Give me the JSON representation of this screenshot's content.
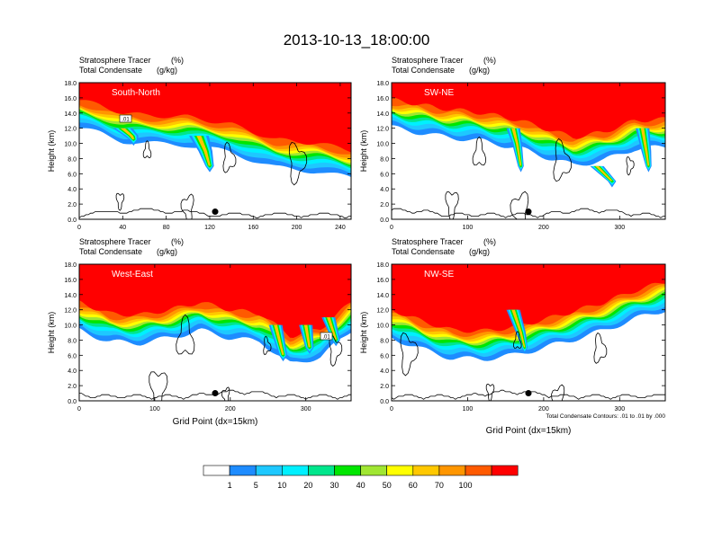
{
  "title": "2013-10-13_18:00:00",
  "colors": {
    "bins": [
      "#ffffff",
      "#1e8cff",
      "#1ec8ff",
      "#00f0ff",
      "#00e68c",
      "#00e600",
      "#a0e632",
      "#ffff00",
      "#ffc800",
      "#ff9600",
      "#ff5a00",
      "#ff0000"
    ],
    "contour": "#000000",
    "terrain": "#000000"
  },
  "colorbar": {
    "labels": [
      "1",
      "5",
      "10",
      "20",
      "30",
      "40",
      "50",
      "60",
      "70",
      "100"
    ]
  },
  "chart_data": [
    {
      "type": "heatmap",
      "panel_label": "South-North",
      "subtitle_left_1": "Stratosphere Tracer",
      "subtitle_unit_1": "(%)",
      "subtitle_left_2": "Total Condensate",
      "subtitle_unit_2": "(g/kg)",
      "ylabel": "Height (km)",
      "xlabel": "",
      "xlim": [
        0,
        250
      ],
      "ylim": [
        0,
        18
      ],
      "xticks": [
        "0",
        "40",
        "80",
        "120",
        "160",
        "200",
        "240"
      ],
      "xtick_values": [
        0,
        40,
        80,
        120,
        160,
        200,
        240
      ],
      "yticks": [
        "0.0",
        "2.0",
        "4.0",
        "6.0",
        "8.0",
        "10.0",
        "12.0",
        "14.0",
        "16.0",
        "18.0"
      ],
      "tropopause_km": [
        [
          0,
          15.2
        ],
        [
          20,
          14.5
        ],
        [
          40,
          13.5
        ],
        [
          60,
          13.2
        ],
        [
          100,
          13
        ],
        [
          140,
          12
        ],
        [
          180,
          10
        ],
        [
          220,
          9.5
        ],
        [
          250,
          8.6
        ]
      ],
      "intrusions": [
        [
          [
            40,
            12
          ],
          [
            48,
            11
          ],
          [
            50,
            10.5
          ]
        ],
        [
          [
            110,
            11
          ],
          [
            116,
            9
          ],
          [
            120,
            7
          ]
        ]
      ],
      "marker": [
        125,
        1.0
      ],
      "contour_label": ".01"
    },
    {
      "type": "heatmap",
      "panel_label": "SW-NE",
      "subtitle_left_1": "Stratosphere Tracer",
      "subtitle_unit_1": "(%)",
      "subtitle_left_2": "Total Condensate",
      "subtitle_unit_2": "(g/kg)",
      "ylabel": "Height (km)",
      "xlabel": "",
      "xlim": [
        0,
        360
      ],
      "ylim": [
        0,
        18
      ],
      "xticks": [
        "0",
        "100",
        "200",
        "300"
      ],
      "xtick_values": [
        0,
        100,
        200,
        300
      ],
      "yticks": [
        "0.0",
        "2.0",
        "4.0",
        "6.0",
        "8.0",
        "10.0",
        "12.0",
        "14.0",
        "16.0",
        "18.0"
      ],
      "tropopause_km": [
        [
          0,
          15.3
        ],
        [
          60,
          14.2
        ],
        [
          120,
          13.5
        ],
        [
          170,
          12.5
        ],
        [
          200,
          11.5
        ],
        [
          240,
          10.3
        ],
        [
          280,
          11
        ],
        [
          320,
          12.5
        ],
        [
          360,
          12.7
        ]
      ],
      "intrusions": [
        [
          [
            160,
            12
          ],
          [
            165,
            10
          ],
          [
            170,
            7
          ]
        ],
        [
          [
            270,
            7
          ],
          [
            290,
            5
          ]
        ],
        [
          [
            330,
            12
          ],
          [
            335,
            9
          ],
          [
            338,
            7
          ]
        ]
      ],
      "marker": [
        180,
        1.0
      ],
      "contour_label": ""
    },
    {
      "type": "heatmap",
      "panel_label": "West-East",
      "subtitle_left_1": "Stratosphere Tracer",
      "subtitle_unit_1": "(%)",
      "subtitle_left_2": "Total Condensate",
      "subtitle_unit_2": "(g/kg)",
      "ylabel": "Height (km)",
      "xlabel": "Grid Point (dx=15km)",
      "xlim": [
        0,
        360
      ],
      "ylim": [
        0,
        18
      ],
      "xticks": [
        "0",
        "100",
        "200",
        "300"
      ],
      "xtick_values": [
        0,
        100,
        200,
        300
      ],
      "yticks": [
        "0.0",
        "2.0",
        "4.0",
        "6.0",
        "8.0",
        "10.0",
        "12.0",
        "14.0",
        "16.0",
        "18.0"
      ],
      "tropopause_km": [
        [
          0,
          12.5
        ],
        [
          40,
          11
        ],
        [
          80,
          10.8
        ],
        [
          120,
          11.5
        ],
        [
          160,
          12.5
        ],
        [
          200,
          11.5
        ],
        [
          240,
          11
        ],
        [
          280,
          8
        ],
        [
          320,
          9
        ],
        [
          360,
          12.5
        ]
      ],
      "intrusions": [
        [
          [
            260,
            10
          ],
          [
            270,
            6
          ]
        ],
        [
          [
            300,
            10
          ],
          [
            305,
            7
          ]
        ],
        [
          [
            330,
            11
          ],
          [
            340,
            8
          ]
        ]
      ],
      "marker": [
        180,
        1.0
      ],
      "contour_label": ".01"
    },
    {
      "type": "heatmap",
      "panel_label": "NW-SE",
      "subtitle_left_1": "Stratosphere Tracer",
      "subtitle_unit_1": "(%)",
      "subtitle_left_2": "Total Condensate",
      "subtitle_unit_2": "(g/kg)",
      "ylabel": "Height (km)",
      "xlabel": "Grid Point (dx=15km)",
      "xlim": [
        0,
        360
      ],
      "ylim": [
        0,
        18
      ],
      "xticks": [
        "0",
        "100",
        "200",
        "300"
      ],
      "xtick_values": [
        0,
        100,
        200,
        300
      ],
      "yticks": [
        "0.0",
        "2.0",
        "4.0",
        "6.0",
        "8.0",
        "10.0",
        "12.0",
        "14.0",
        "16.0",
        "18.0"
      ],
      "tropopause_km": [
        [
          0,
          11.5
        ],
        [
          40,
          10
        ],
        [
          80,
          8.8
        ],
        [
          120,
          8.7
        ],
        [
          160,
          9.2
        ],
        [
          200,
          10.2
        ],
        [
          240,
          11.3
        ],
        [
          280,
          12.5
        ],
        [
          320,
          14
        ],
        [
          360,
          15.2
        ]
      ],
      "intrusions": [
        [
          [
            160,
            12
          ],
          [
            170,
            9
          ],
          [
            175,
            7
          ]
        ]
      ],
      "marker": [
        180,
        1.0
      ],
      "contour_label": "",
      "footnote": "Total Condensate Contours: .01 to .01 by .000"
    }
  ]
}
